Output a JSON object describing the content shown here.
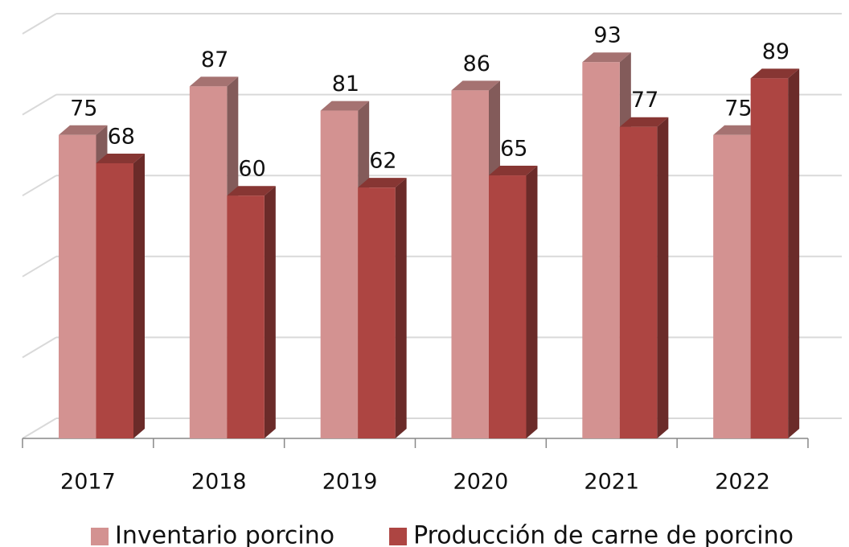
{
  "chart_data": {
    "type": "bar3d",
    "categories": [
      "2017",
      "2018",
      "2019",
      "2020",
      "2021",
      "2022"
    ],
    "series": [
      {
        "name": "Inventario porcino",
        "color": "#d39291",
        "values": [
          75,
          87,
          81,
          86,
          93,
          75
        ]
      },
      {
        "name": "Producción de carne de porcino",
        "color": "#ad4542",
        "values": [
          68,
          60,
          62,
          65,
          77,
          89
        ]
      }
    ],
    "ylim": [
      0,
      100
    ],
    "yticks": [
      0,
      20,
      40,
      60,
      80,
      100
    ],
    "grid": true,
    "legend": "bottom"
  }
}
